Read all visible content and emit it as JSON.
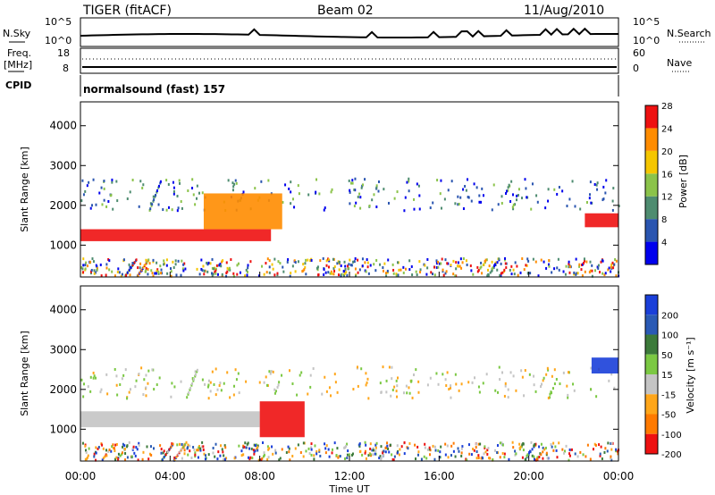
{
  "header": {
    "radar": "TIGER (fitACF)",
    "beam": "Beam 02",
    "date": "11/Aug/2010"
  },
  "sky_panel": {
    "left_label": "N.Sky",
    "right_label": "N.Search",
    "ticks_left": [
      "10^5",
      "10^0"
    ],
    "ticks_right": [
      "10^5",
      "10^0"
    ]
  },
  "freq_panel": {
    "left_label_1": "Freq.",
    "left_label_2": "[MHz]",
    "right_label": "Nave",
    "ticks_left": [
      "18",
      "8"
    ],
    "ticks_right": [
      "60",
      "0"
    ]
  },
  "cpid": {
    "label": "CPID",
    "value": "normalsound (fast) 157"
  },
  "chart_data": [
    {
      "type": "heatmap",
      "title": "Power",
      "ylabel": "Slant Range [km]",
      "yticks": [
        "1000",
        "2000",
        "3000",
        "4000"
      ],
      "ylim": [
        200,
        4600
      ],
      "colorbar_label": "Power [dB]",
      "colorbar_ticks": [
        "4",
        "8",
        "12",
        "16",
        "20",
        "24",
        "28"
      ],
      "colorbar_colors": [
        "#0000ee",
        "#2a55b0",
        "#4e8c70",
        "#8bc34a",
        "#f5c600",
        "#ff8c00",
        "#ee1111"
      ],
      "features": [
        {
          "name": "strong echo band",
          "x_start_hours": 0,
          "x_end_hours": 8.5,
          "range_km": [
            1100,
            1400
          ],
          "value_db": 26
        },
        {
          "name": "rising echo",
          "x_start_hours": 5.5,
          "x_end_hours": 9,
          "range_km": [
            1400,
            2300
          ],
          "value_db": 24
        },
        {
          "name": "late echo band",
          "x_start_hours": 22.5,
          "x_end_hours": 24,
          "range_km": [
            1450,
            1800
          ],
          "value_db": 28
        }
      ]
    },
    {
      "type": "heatmap",
      "title": "Velocity",
      "ylabel": "Slant Range [km]",
      "xlabel": "Time UT",
      "xticks": [
        "00:00",
        "04:00",
        "08:00",
        "12:00",
        "16:00",
        "20:00",
        "00:00"
      ],
      "yticks": [
        "1000",
        "2000",
        "3000",
        "4000"
      ],
      "ylim": [
        200,
        4600
      ],
      "colorbar_label": "Velocity [m s⁻¹]",
      "colorbar_ticks": [
        "200",
        "100",
        "50",
        "15",
        "-15",
        "-50",
        "-100",
        "-200"
      ],
      "colorbar_colors": [
        "#1a3fd9",
        "#2a5ab5",
        "#3c7a3a",
        "#7bc843",
        "#c4c4c4",
        "#ffa61a",
        "#ff7a00",
        "#ee1111"
      ],
      "features": [
        {
          "name": "near-zero band",
          "x_start_hours": 0,
          "x_end_hours": 8,
          "range_km": [
            1050,
            1450
          ],
          "value_ms": 0
        },
        {
          "name": "negative velocity",
          "x_start_hours": 8,
          "x_end_hours": 10,
          "range_km": [
            800,
            1700
          ],
          "value_ms": -200
        },
        {
          "name": "positive velocity",
          "x_start_hours": 22.8,
          "x_end_hours": 24,
          "range_km": [
            2400,
            2800
          ],
          "value_ms": 150
        }
      ]
    }
  ]
}
